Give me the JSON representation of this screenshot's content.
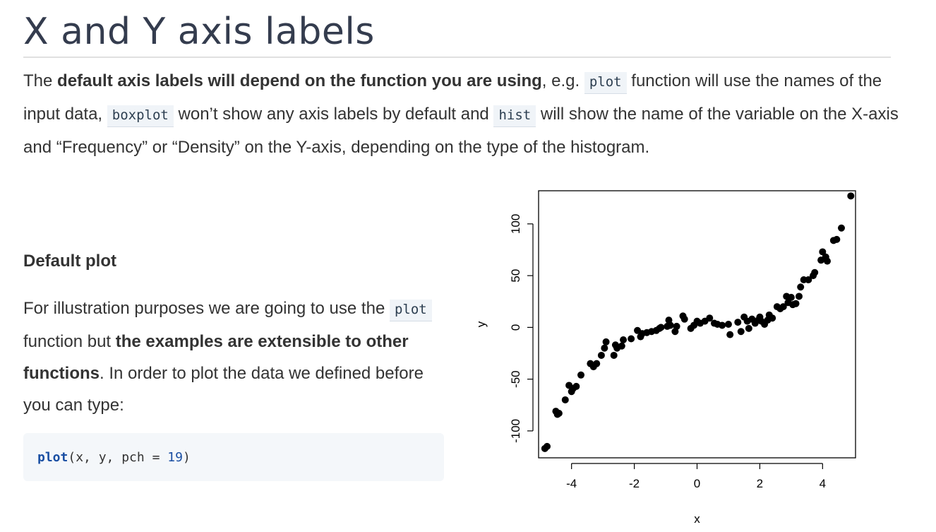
{
  "page": {
    "title": "X and Y axis labels",
    "intro": {
      "t1": "The ",
      "b1": "default axis labels will depend on the function you are using",
      "t2": ", e.g. ",
      "c1": "plot",
      "t3": " function will use the names of the input data, ",
      "c2": "boxplot",
      "t4": " won’t show any axis labels by default and ",
      "c3": "hist",
      "t5": " will show the name of the variable on the X-axis and “Frequency” or “Density” on the Y-axis, depending on the type of the histogram."
    },
    "section_title": "Default plot",
    "body": {
      "t1": "For illustration purposes we are going to use the ",
      "c1": "plot",
      "t2": " function but ",
      "b1": "the examples are extensible to other functions",
      "t3": ". In order to plot the data we defined before you can type:"
    },
    "code": {
      "fn": "plot",
      "args": "(x, y, pch = ",
      "num": "19",
      "close": ")"
    }
  },
  "colors": {
    "title": "#343c4e",
    "text": "#333333",
    "code_bg": "#f4f7fa",
    "points": "#000000"
  },
  "chart_data": {
    "type": "scatter",
    "xlabel": "x",
    "ylabel": "y",
    "xlim": [
      -5.05,
      5.05
    ],
    "ylim": [
      -126,
      132
    ],
    "xticks": [
      -4,
      -2,
      0,
      2,
      4
    ],
    "yticks": [
      -100,
      -50,
      0,
      50,
      100
    ],
    "grid": false,
    "marker": "filled-circle",
    "points": [
      [
        -4.85,
        -117
      ],
      [
        -4.78,
        -115
      ],
      [
        -4.5,
        -81
      ],
      [
        -4.45,
        -84
      ],
      [
        -4.4,
        -83
      ],
      [
        -4.2,
        -70
      ],
      [
        -4.08,
        -56
      ],
      [
        -4.0,
        -62
      ],
      [
        -3.95,
        -59
      ],
      [
        -3.85,
        -57
      ],
      [
        -3.7,
        -46
      ],
      [
        -3.4,
        -35
      ],
      [
        -3.3,
        -38
      ],
      [
        -3.2,
        -35
      ],
      [
        -3.05,
        -27
      ],
      [
        -2.95,
        -20
      ],
      [
        -2.9,
        -14
      ],
      [
        -2.65,
        -27
      ],
      [
        -2.6,
        -17
      ],
      [
        -2.55,
        -20
      ],
      [
        -2.4,
        -18
      ],
      [
        -2.35,
        -12
      ],
      [
        -2.1,
        -11
      ],
      [
        -1.9,
        -3
      ],
      [
        -1.8,
        -9
      ],
      [
        -1.75,
        -6
      ],
      [
        -1.6,
        -5
      ],
      [
        -1.45,
        -4
      ],
      [
        -1.3,
        -3
      ],
      [
        -1.2,
        -1
      ],
      [
        -1.15,
        0
      ],
      [
        -0.95,
        1
      ],
      [
        -0.9,
        7
      ],
      [
        -0.85,
        2
      ],
      [
        -0.7,
        -4
      ],
      [
        -0.65,
        1
      ],
      [
        -0.45,
        11
      ],
      [
        -0.4,
        8
      ],
      [
        -0.2,
        -1
      ],
      [
        -0.1,
        2
      ],
      [
        0.0,
        6
      ],
      [
        0.1,
        4
      ],
      [
        0.25,
        6
      ],
      [
        0.4,
        9
      ],
      [
        0.55,
        4
      ],
      [
        0.65,
        3
      ],
      [
        0.8,
        2
      ],
      [
        1.0,
        3
      ],
      [
        1.05,
        -7
      ],
      [
        1.3,
        5
      ],
      [
        1.4,
        -4
      ],
      [
        1.5,
        10
      ],
      [
        1.6,
        6
      ],
      [
        1.65,
        -1
      ],
      [
        1.75,
        8
      ],
      [
        1.85,
        4
      ],
      [
        1.95,
        7
      ],
      [
        2.0,
        10
      ],
      [
        2.05,
        6
      ],
      [
        2.15,
        3
      ],
      [
        2.25,
        7
      ],
      [
        2.3,
        12
      ],
      [
        2.4,
        9
      ],
      [
        2.55,
        20
      ],
      [
        2.65,
        18
      ],
      [
        2.75,
        20
      ],
      [
        2.85,
        30
      ],
      [
        2.9,
        24
      ],
      [
        3.0,
        29
      ],
      [
        3.05,
        22
      ],
      [
        3.15,
        23
      ],
      [
        3.25,
        30
      ],
      [
        3.3,
        39
      ],
      [
        3.4,
        46
      ],
      [
        3.55,
        46
      ],
      [
        3.7,
        50
      ],
      [
        3.75,
        53
      ],
      [
        3.95,
        65
      ],
      [
        4.0,
        73
      ],
      [
        4.1,
        68
      ],
      [
        4.15,
        64
      ],
      [
        4.35,
        84
      ],
      [
        4.45,
        85
      ],
      [
        4.6,
        96
      ],
      [
        4.9,
        127
      ]
    ]
  }
}
